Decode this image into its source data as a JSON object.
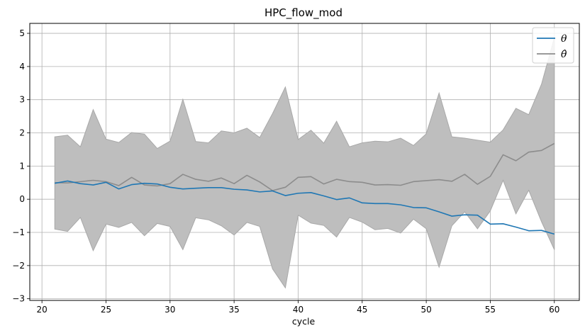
{
  "chart_data": {
    "type": "line",
    "title": "HPC_flow_mod",
    "xlabel": "cycle",
    "ylabel": "",
    "xlim": [
      19.05,
      61.95
    ],
    "ylim": [
      -3.05,
      5.3
    ],
    "xticks": [
      20,
      25,
      30,
      35,
      40,
      45,
      50,
      55,
      60
    ],
    "yticks": [
      -3,
      -2,
      -1,
      0,
      1,
      2,
      3,
      4,
      5
    ],
    "grid": true,
    "legend_position": "top-right",
    "x": [
      21,
      22,
      23,
      24,
      25,
      26,
      27,
      28,
      29,
      30,
      31,
      32,
      33,
      34,
      35,
      36,
      37,
      38,
      39,
      40,
      41,
      42,
      43,
      44,
      45,
      46,
      47,
      48,
      49,
      50,
      51,
      52,
      53,
      54,
      55,
      56,
      57,
      58,
      59,
      60
    ],
    "series": [
      {
        "name": "θ",
        "color": "#1f77b4",
        "values": [
          0.48,
          0.55,
          0.47,
          0.43,
          0.51,
          0.31,
          0.44,
          0.48,
          0.46,
          0.36,
          0.31,
          0.33,
          0.35,
          0.35,
          0.3,
          0.28,
          0.22,
          0.25,
          0.11,
          0.18,
          0.2,
          0.1,
          -0.01,
          0.04,
          -0.11,
          -0.13,
          -0.13,
          -0.17,
          -0.25,
          -0.26,
          -0.38,
          -0.51,
          -0.47,
          -0.48,
          -0.75,
          -0.74,
          -0.84,
          -0.95,
          -0.94,
          -1.05
        ]
      },
      {
        "name": "θ̂",
        "color": "#8c8c8c",
        "values": [
          0.5,
          0.49,
          0.53,
          0.57,
          0.53,
          0.41,
          0.66,
          0.43,
          0.4,
          0.47,
          0.75,
          0.6,
          0.54,
          0.64,
          0.47,
          0.72,
          0.52,
          0.26,
          0.36,
          0.66,
          0.68,
          0.46,
          0.6,
          0.53,
          0.51,
          0.43,
          0.44,
          0.42,
          0.53,
          0.56,
          0.59,
          0.54,
          0.75,
          0.45,
          0.69,
          1.34,
          1.16,
          1.42,
          1.47,
          1.68
        ],
        "band_upper": [
          1.88,
          1.93,
          1.58,
          2.7,
          1.81,
          1.71,
          2.01,
          1.96,
          1.53,
          1.75,
          3.01,
          1.74,
          1.7,
          2.06,
          2.0,
          2.14,
          1.86,
          2.58,
          3.38,
          1.8,
          2.08,
          1.69,
          2.35,
          1.58,
          1.7,
          1.75,
          1.73,
          1.84,
          1.62,
          1.97,
          3.2,
          1.88,
          1.84,
          1.78,
          1.72,
          2.09,
          2.74,
          2.55,
          3.47,
          4.87
        ],
        "band_lower": [
          -0.9,
          -0.97,
          -0.55,
          -1.55,
          -0.75,
          -0.85,
          -0.7,
          -1.1,
          -0.73,
          -0.82,
          -1.52,
          -0.56,
          -0.62,
          -0.8,
          -1.08,
          -0.7,
          -0.82,
          -2.1,
          -2.67,
          -0.48,
          -0.72,
          -0.79,
          -1.14,
          -0.55,
          -0.69,
          -0.92,
          -0.88,
          -1.02,
          -0.6,
          -0.89,
          -2.05,
          -0.8,
          -0.38,
          -0.89,
          -0.35,
          0.57,
          -0.44,
          0.27,
          -0.68,
          -1.52
        ]
      }
    ],
    "band_color": "#bebebe",
    "band_edge_color": "#a8a8a8"
  }
}
